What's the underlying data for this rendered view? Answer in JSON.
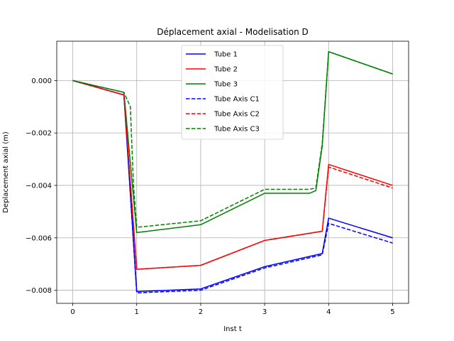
{
  "chart_data": {
    "type": "line",
    "title": "Déplacement axial - Modelisation D",
    "xlabel": "Inst t",
    "ylabel": "Deplacement axial (m)",
    "xlim": [
      -0.25,
      5.25
    ],
    "ylim": [
      -0.0085,
      0.0015
    ],
    "xticks": [
      0,
      1,
      2,
      3,
      4,
      5
    ],
    "xtick_labels": [
      "0",
      "1",
      "2",
      "3",
      "4",
      "5"
    ],
    "yticks": [
      -0.008,
      -0.006,
      -0.004,
      -0.002,
      0.0
    ],
    "ytick_labels": [
      "−0.008",
      "−0.006",
      "−0.004",
      "−0.002",
      "0.000"
    ],
    "grid": true,
    "legend_position": "top-center",
    "series": [
      {
        "name": "Tube 1",
        "color": "#0000ff",
        "style": "solid",
        "points": [
          [
            0,
            0.0
          ],
          [
            0.8,
            -0.00055
          ],
          [
            1.0,
            -0.00805
          ],
          [
            2.0,
            -0.00795
          ],
          [
            3.0,
            -0.0071
          ],
          [
            3.9,
            -0.0066
          ],
          [
            4.0,
            -0.00525
          ],
          [
            5.0,
            -0.006
          ]
        ]
      },
      {
        "name": "Tube 2",
        "color": "#ff0000",
        "style": "solid",
        "points": [
          [
            0,
            0.0
          ],
          [
            0.8,
            -0.00055
          ],
          [
            1.0,
            -0.0072
          ],
          [
            2.0,
            -0.00705
          ],
          [
            3.0,
            -0.0061
          ],
          [
            3.9,
            -0.00575
          ],
          [
            4.0,
            -0.0032
          ],
          [
            5.0,
            -0.004
          ]
        ]
      },
      {
        "name": "Tube 3",
        "color": "#008000",
        "style": "solid",
        "points": [
          [
            0,
            0.0
          ],
          [
            0.8,
            -0.00045
          ],
          [
            1.0,
            -0.0058
          ],
          [
            2.0,
            -0.0055
          ],
          [
            3.0,
            -0.0043
          ],
          [
            3.7,
            -0.0043
          ],
          [
            3.8,
            -0.0042
          ],
          [
            3.9,
            -0.0025
          ],
          [
            4.0,
            0.0011
          ],
          [
            5.0,
            0.00025
          ]
        ]
      },
      {
        "name": "Tube Axis C1",
        "color": "#0000ff",
        "style": "dashed",
        "points": [
          [
            0,
            0.0
          ],
          [
            0.8,
            -0.00055
          ],
          [
            1.0,
            -0.0081
          ],
          [
            2.0,
            -0.008
          ],
          [
            3.0,
            -0.00715
          ],
          [
            3.9,
            -0.00665
          ],
          [
            4.0,
            -0.00545
          ],
          [
            5.0,
            -0.0062
          ]
        ]
      },
      {
        "name": "Tube Axis C2",
        "color": "#ff0000",
        "style": "dashed",
        "points": [
          [
            0,
            0.0
          ],
          [
            0.8,
            -0.00055
          ],
          [
            1.0,
            -0.0072
          ],
          [
            2.0,
            -0.00705
          ],
          [
            3.0,
            -0.0061
          ],
          [
            3.9,
            -0.00575
          ],
          [
            4.0,
            -0.0033
          ],
          [
            5.0,
            -0.0041
          ]
        ]
      },
      {
        "name": "Tube Axis C3",
        "color": "#008000",
        "style": "dashed",
        "points": [
          [
            0,
            0.0
          ],
          [
            0.8,
            -0.00045
          ],
          [
            0.9,
            -0.001
          ],
          [
            0.95,
            -0.004
          ],
          [
            1.0,
            -0.0056
          ],
          [
            2.0,
            -0.00535
          ],
          [
            3.0,
            -0.00415
          ],
          [
            3.7,
            -0.00415
          ],
          [
            3.8,
            -0.0041
          ],
          [
            3.9,
            -0.0024
          ],
          [
            4.0,
            0.0011
          ],
          [
            5.0,
            0.00025
          ]
        ]
      }
    ]
  }
}
